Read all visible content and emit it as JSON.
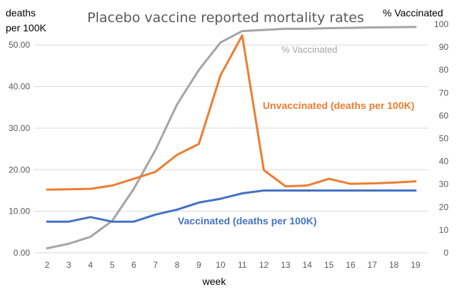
{
  "chart_data": {
    "type": "line",
    "title": "Placebo vaccine reported mortality rates",
    "xlabel": "week",
    "ylabel_left": [
      "deaths",
      "per 100K"
    ],
    "ylabel_right": "% Vaccinated",
    "categories": [
      2,
      3,
      4,
      5,
      6,
      7,
      8,
      9,
      10,
      11,
      12,
      13,
      14,
      15,
      16,
      17,
      18,
      19
    ],
    "ylim_left": [
      0,
      55
    ],
    "yticks_left": [
      "0.00",
      "10.00",
      "20.00",
      "30.00",
      "40.00",
      "50.00"
    ],
    "ylim_right": [
      0,
      100
    ],
    "yticks_right": [
      "0",
      "10",
      "20",
      "30",
      "40",
      "50",
      "60",
      "70",
      "80",
      "90",
      "100"
    ],
    "grid": true,
    "series": [
      {
        "name": "Unvaccinated (deaths per 100K)",
        "axis": "left",
        "color": "#ED7D31",
        "label_style": "bold",
        "values": [
          15.2,
          15.3,
          15.4,
          16.2,
          17.8,
          19.5,
          23.6,
          26.2,
          42.7,
          52.3,
          19.9,
          16.0,
          16.2,
          17.8,
          16.6,
          16.7,
          16.9,
          17.2
        ]
      },
      {
        "name": "Vaccinated (deaths per 100K)",
        "axis": "left",
        "color": "#4472C4",
        "label_style": "bold",
        "values": [
          7.5,
          7.5,
          8.6,
          7.5,
          7.5,
          9.2,
          10.4,
          12.1,
          13.0,
          14.3,
          15.0,
          15.0,
          15.0,
          15.0,
          15.0,
          15.0,
          15.0,
          15.0
        ]
      },
      {
        "name": "% Vaccinated",
        "axis": "right",
        "color": "#A5A5A5",
        "label_style": "plain",
        "values": [
          2,
          4,
          7,
          14,
          28,
          45,
          65,
          80,
          92,
          97,
          97.5,
          98,
          98,
          98.3,
          98.4,
          98.6,
          98.7,
          98.8
        ]
      }
    ]
  }
}
